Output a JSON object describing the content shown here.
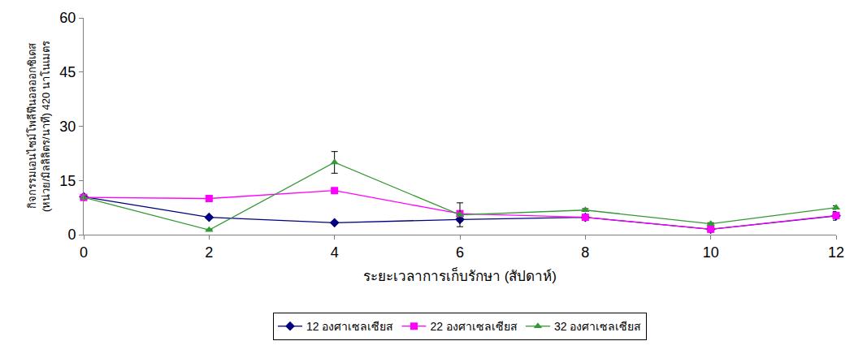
{
  "chart_data": {
    "type": "line",
    "x_label": "ระยะเวลาการเก็บรักษา (สัปดาห์)",
    "y_label": "กิจกรรมเอนไซม์โพลีฟีนอลออกซิเดส (หน่วย/มิลลิลิตร/นาที) 420 นาโนเมตร",
    "x": [
      0,
      2,
      4,
      6,
      8,
      10,
      12
    ],
    "xlim": [
      0,
      12
    ],
    "xticks": [
      0,
      2,
      4,
      6,
      8,
      10,
      12
    ],
    "ylim": [
      0,
      60
    ],
    "yticks": [
      0,
      15,
      30,
      45,
      60
    ],
    "grid": false,
    "legend": "bottom",
    "series": [
      {
        "name": "12 องศาเซลเซียส",
        "color": "#000080",
        "marker": "diamond",
        "line_style": "solid",
        "values": [
          10.5,
          4.8,
          3.3,
          4.2,
          4.8,
          1.5,
          5.2
        ],
        "errors": [
          0.3,
          0.3,
          0.2,
          0.4,
          0.3,
          0.2,
          1.2
        ]
      },
      {
        "name": "22 องศาเซลเซียส",
        "color": "#ff00ff",
        "marker": "square",
        "line_style": "solid",
        "values": [
          10.3,
          10.0,
          12.2,
          5.8,
          4.8,
          1.5,
          5.3
        ],
        "errors": [
          0.3,
          0.5,
          0.4,
          0.5,
          0.3,
          0.2,
          0.4
        ]
      },
      {
        "name": "32 องศาเซลเซียส",
        "color": "#339933",
        "marker": "triangle-up",
        "line_style": "solid",
        "values": [
          10.3,
          1.3,
          20.0,
          5.5,
          6.8,
          3.0,
          7.5
        ],
        "errors": [
          0.3,
          0.2,
          3.0,
          3.3,
          0.4,
          0.3,
          0.5
        ]
      }
    ]
  }
}
